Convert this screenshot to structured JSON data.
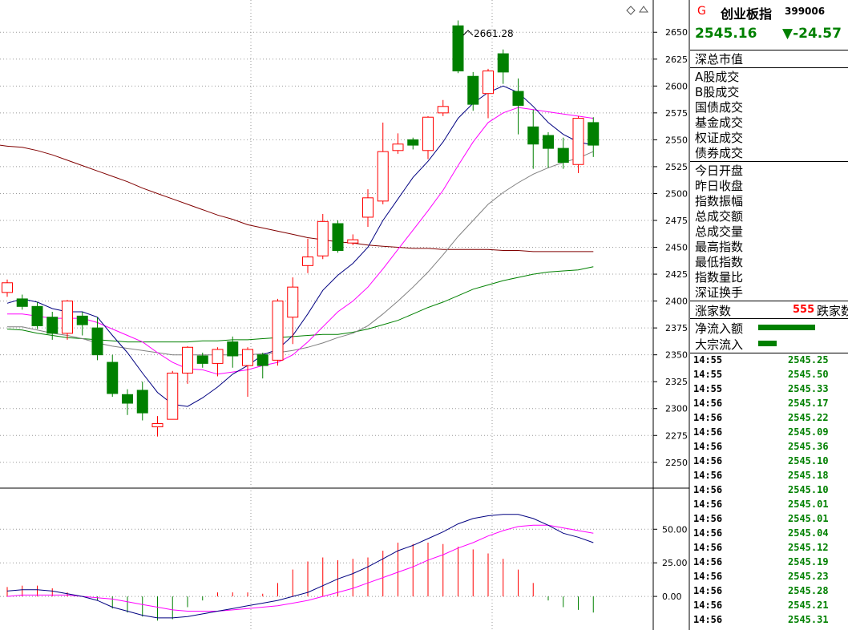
{
  "header": {
    "g_label": "G",
    "name": "创业板指",
    "code": "399006",
    "price": "2545.16",
    "change": "▼-24.57"
  },
  "info": {
    "group1": [
      "深总市值"
    ],
    "group2": [
      "A股成交",
      "B股成交",
      "国债成交",
      "基金成交",
      "权证成交",
      "债券成交"
    ],
    "group3": [
      "今日开盘",
      "昨日收盘",
      "指数振幅",
      "总成交额",
      "总成交量",
      "最高指数",
      "最低指数",
      "指数量比",
      "深证换手"
    ],
    "rise_label": "涨家数",
    "rise_count": "555",
    "fall_label": "跌家数",
    "net_inflow_label": "净流入额",
    "block_inflow_label": "大宗流入"
  },
  "ticks": [
    {
      "time": "14:55",
      "price": "2545.25"
    },
    {
      "time": "14:55",
      "price": "2545.50"
    },
    {
      "time": "14:55",
      "price": "2545.33"
    },
    {
      "time": "14:56",
      "price": "2545.17"
    },
    {
      "time": "14:56",
      "price": "2545.22"
    },
    {
      "time": "14:56",
      "price": "2545.09"
    },
    {
      "time": "14:56",
      "price": "2545.36"
    },
    {
      "time": "14:56",
      "price": "2545.10"
    },
    {
      "time": "14:56",
      "price": "2545.18"
    },
    {
      "time": "14:56",
      "price": "2545.10"
    },
    {
      "time": "14:56",
      "price": "2545.01"
    },
    {
      "time": "14:56",
      "price": "2545.01"
    },
    {
      "time": "14:56",
      "price": "2545.04"
    },
    {
      "time": "14:56",
      "price": "2545.12"
    },
    {
      "time": "14:56",
      "price": "2545.19"
    },
    {
      "time": "14:56",
      "price": "2545.23"
    },
    {
      "time": "14:56",
      "price": "2545.28"
    },
    {
      "time": "14:56",
      "price": "2545.21"
    },
    {
      "time": "14:56",
      "price": "2545.31"
    }
  ],
  "chart_data": {
    "type": "candlestick",
    "annotation": "2661.28",
    "price_axis": {
      "ylim": [
        2226,
        2680
      ],
      "ticks": [
        "2250",
        "2275",
        "2300",
        "2325",
        "2350",
        "2375",
        "2400",
        "2425",
        "2450",
        "2475",
        "2500",
        "2525",
        "2550",
        "2575",
        "2600",
        "2625",
        "2650"
      ]
    },
    "candles": [
      {
        "o": 2408,
        "c": 2417,
        "h": 2420,
        "l": 2404
      },
      {
        "o": 2402,
        "c": 2395,
        "h": 2406,
        "l": 2392
      },
      {
        "o": 2395,
        "c": 2377,
        "h": 2399,
        "l": 2374
      },
      {
        "o": 2385,
        "c": 2370,
        "h": 2390,
        "l": 2364
      },
      {
        "o": 2370,
        "c": 2400,
        "h": 2401,
        "l": 2364
      },
      {
        "o": 2386,
        "c": 2378,
        "h": 2390,
        "l": 2368
      },
      {
        "o": 2375,
        "c": 2350,
        "h": 2385,
        "l": 2345
      },
      {
        "o": 2343,
        "c": 2314,
        "h": 2350,
        "l": 2311
      },
      {
        "o": 2313,
        "c": 2305,
        "h": 2318,
        "l": 2294
      },
      {
        "o": 2317,
        "c": 2296,
        "h": 2325,
        "l": 2289
      },
      {
        "o": 2283,
        "c": 2286,
        "h": 2293,
        "l": 2274
      },
      {
        "o": 2290,
        "c": 2333,
        "h": 2335,
        "l": 2290
      },
      {
        "o": 2333,
        "c": 2357,
        "h": 2358,
        "l": 2323
      },
      {
        "o": 2349,
        "c": 2342,
        "h": 2352,
        "l": 2338
      },
      {
        "o": 2342,
        "c": 2355,
        "h": 2357,
        "l": 2330
      },
      {
        "o": 2362,
        "c": 2349,
        "h": 2367,
        "l": 2338
      },
      {
        "o": 2340,
        "c": 2355,
        "h": 2357,
        "l": 2311
      },
      {
        "o": 2350,
        "c": 2340,
        "h": 2352,
        "l": 2328
      },
      {
        "o": 2345,
        "c": 2400,
        "h": 2402,
        "l": 2340
      },
      {
        "o": 2385,
        "c": 2413,
        "h": 2422,
        "l": 2360
      },
      {
        "o": 2433,
        "c": 2441,
        "h": 2458,
        "l": 2426
      },
      {
        "o": 2442,
        "c": 2474,
        "h": 2481,
        "l": 2439
      },
      {
        "o": 2472,
        "c": 2447,
        "h": 2475,
        "l": 2445
      },
      {
        "o": 2454,
        "c": 2457,
        "h": 2462,
        "l": 2452
      },
      {
        "o": 2478,
        "c": 2496,
        "h": 2504,
        "l": 2469
      },
      {
        "o": 2493,
        "c": 2539,
        "h": 2566,
        "l": 2490
      },
      {
        "o": 2540,
        "c": 2546,
        "h": 2556,
        "l": 2537
      },
      {
        "o": 2550,
        "c": 2545,
        "h": 2552,
        "l": 2541
      },
      {
        "o": 2540,
        "c": 2571,
        "h": 2572,
        "l": 2532
      },
      {
        "o": 2575,
        "c": 2581,
        "h": 2587,
        "l": 2572
      },
      {
        "o": 2656,
        "c": 2614,
        "h": 2661,
        "l": 2612
      },
      {
        "o": 2609,
        "c": 2583,
        "h": 2613,
        "l": 2577
      },
      {
        "o": 2593,
        "c": 2614,
        "h": 2616,
        "l": 2570
      },
      {
        "o": 2630,
        "c": 2613,
        "h": 2634,
        "l": 2602
      },
      {
        "o": 2595,
        "c": 2582,
        "h": 2607,
        "l": 2555
      },
      {
        "o": 2562,
        "c": 2546,
        "h": 2578,
        "l": 2523
      },
      {
        "o": 2554,
        "c": 2542,
        "h": 2557,
        "l": 2524
      },
      {
        "o": 2542,
        "c": 2529,
        "h": 2552,
        "l": 2523
      },
      {
        "o": 2527,
        "c": 2570,
        "h": 2572,
        "l": 2519
      },
      {
        "o": 2566,
        "c": 2545,
        "h": 2571,
        "l": 2534
      }
    ],
    "ma_navy": [
      2398,
      2402,
      2399,
      2393,
      2390,
      2390,
      2385,
      2368,
      2352,
      2333,
      2315,
      2304,
      2302,
      2310,
      2320,
      2332,
      2340,
      2350,
      2355,
      2368,
      2388,
      2410,
      2424,
      2435,
      2450,
      2475,
      2495,
      2515,
      2530,
      2548,
      2570,
      2584,
      2594,
      2600,
      2594,
      2581,
      2566,
      2555,
      2548,
      2545
    ],
    "ma_magenta": [
      2388,
      2388,
      2386,
      2384,
      2384,
      2384,
      2380,
      2374,
      2368,
      2362,
      2352,
      2343,
      2337,
      2336,
      2332,
      2334,
      2336,
      2340,
      2343,
      2350,
      2362,
      2376,
      2390,
      2400,
      2413,
      2430,
      2448,
      2466,
      2484,
      2503,
      2526,
      2548,
      2566,
      2575,
      2580,
      2578,
      2576,
      2574,
      2572,
      2570
    ],
    "ma_gray": [
      2376,
      2376,
      2373,
      2370,
      2368,
      2365,
      2361,
      2358,
      2356,
      2354,
      2352,
      2350,
      2350,
      2350,
      2350,
      2350,
      2350,
      2351,
      2352,
      2354,
      2357,
      2361,
      2366,
      2370,
      2377,
      2388,
      2400,
      2413,
      2427,
      2443,
      2460,
      2475,
      2490,
      2501,
      2510,
      2518,
      2524,
      2529,
      2533,
      2539
    ],
    "ma_green": [
      2374,
      2373,
      2370,
      2368,
      2366,
      2365,
      2364,
      2363,
      2362,
      2362,
      2362,
      2362,
      2362,
      2363,
      2363,
      2364,
      2364,
      2365,
      2366,
      2367,
      2368,
      2369,
      2369,
      2371,
      2374,
      2378,
      2382,
      2388,
      2394,
      2399,
      2405,
      2411,
      2415,
      2419,
      2422,
      2425,
      2427,
      2428,
      2429,
      2432
    ],
    "ma_maroon": [
      2544,
      2543,
      2540,
      2536,
      2531,
      2526,
      2521,
      2516,
      2511,
      2505,
      2500,
      2495,
      2490,
      2485,
      2480,
      2476,
      2471,
      2468,
      2465,
      2462,
      2459,
      2457,
      2455,
      2454,
      2452,
      2451,
      2450,
      2449,
      2449,
      2448,
      2448,
      2448,
      2448,
      2447,
      2447,
      2446,
      2446,
      2446,
      2446,
      2446
    ],
    "indicator": {
      "ylim": [
        -25,
        80
      ],
      "ticks": [
        "0.00",
        "25.00",
        "50.00"
      ],
      "line_dark": [
        4,
        5,
        5,
        4,
        2,
        0,
        -3,
        -8,
        -11,
        -14,
        -16,
        -16,
        -15,
        -13,
        -11,
        -9,
        -7,
        -5,
        -3,
        0,
        3,
        8,
        13,
        17,
        22,
        28,
        34,
        38,
        43,
        48,
        54,
        58,
        60,
        61,
        61,
        58,
        53,
        47,
        44,
        40
      ],
      "line_magenta": [
        0,
        1,
        1,
        1,
        1,
        0,
        -1,
        -2,
        -4,
        -6,
        -8,
        -10,
        -11,
        -11,
        -11,
        -10,
        -9,
        -8,
        -7,
        -5,
        -3,
        0,
        3,
        6,
        10,
        14,
        18,
        22,
        27,
        31,
        36,
        40,
        45,
        49,
        52,
        53,
        53,
        51,
        49,
        47
      ],
      "bars": [
        7,
        8,
        8,
        6,
        3,
        0,
        -3,
        -9,
        -12,
        -15,
        -18,
        -17,
        -8,
        -3,
        3,
        3,
        3,
        2,
        10,
        20,
        26,
        29,
        27,
        28,
        29,
        34,
        40,
        39,
        40,
        39,
        37,
        35,
        32,
        28,
        20,
        10,
        -3,
        -8,
        -10,
        -12
      ]
    },
    "colors": {
      "up": "#ff0000",
      "down": "#008000",
      "ma_navy": "#000080",
      "ma_magenta": "#ff00ff",
      "ma_gray": "#808080",
      "ma_green": "#008000",
      "ma_maroon": "#800000"
    }
  }
}
